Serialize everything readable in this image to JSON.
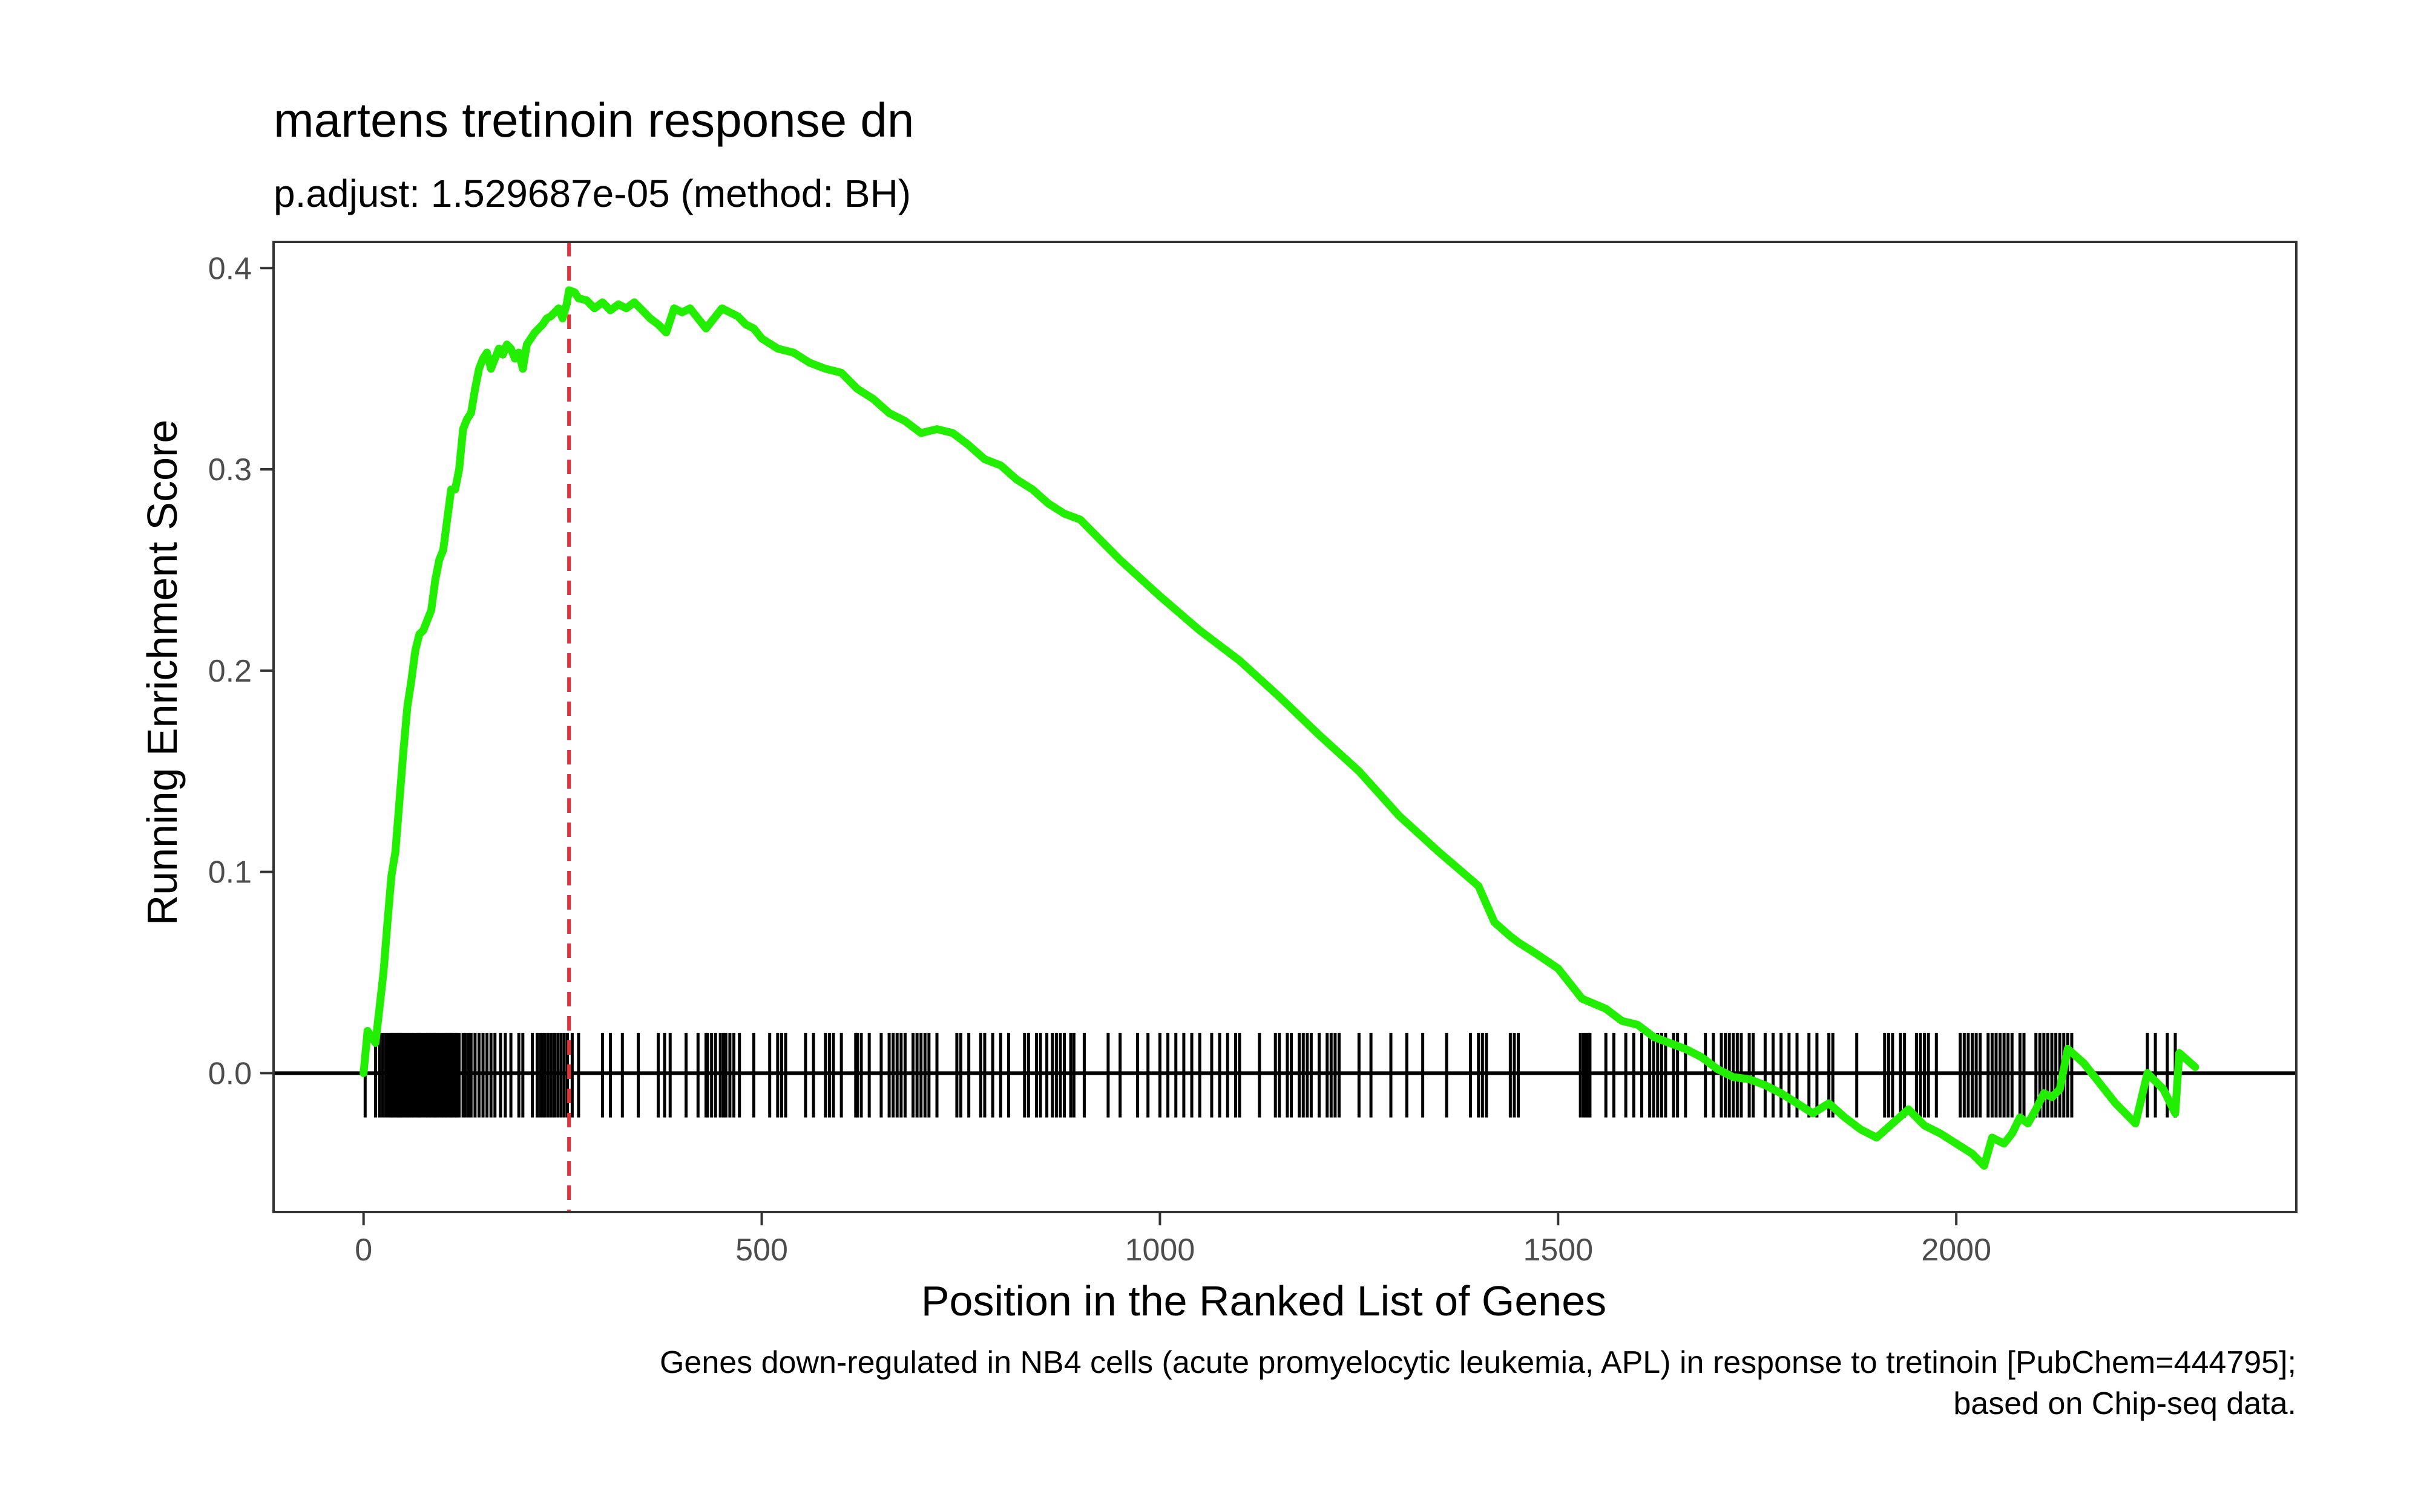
{
  "chart_data": {
    "type": "line",
    "title": "martens tretinoin response dn",
    "subtitle": "p.adjust: 1.529687e-05 (method: BH)",
    "xlabel": "Position in the Ranked List of Genes",
    "ylabel": "Running Enrichment Score",
    "caption": [
      "Genes down-regulated in NB4 cells (acute promyelocytic leukemia, APL) in response to tretinoin [PubChem=444795];",
      "based on Chip-seq data."
    ],
    "xlim": [
      -113,
      2427
    ],
    "ylim": [
      -0.069,
      0.413
    ],
    "x_ticks": [
      0,
      500,
      1000,
      1500,
      2000
    ],
    "x_tick_labels": [
      "0",
      "500",
      "1000",
      "1500",
      "2000"
    ],
    "y_ticks": [
      0.0,
      0.1,
      0.2,
      0.3,
      0.4
    ],
    "y_tick_labels": [
      "0.0",
      "0.1",
      "0.2",
      "0.3",
      "0.4"
    ],
    "grid": false,
    "colors": {
      "curve": "#22ee00",
      "peak_line": "#e8303a",
      "hits": "#000000",
      "zero_line": "#000000"
    },
    "peak_position": 258,
    "series": [
      {
        "x": [
          0,
          5,
          15,
          25,
          30,
          35,
          40,
          45,
          50,
          55,
          60,
          65,
          70,
          75,
          80,
          85,
          90,
          95,
          100,
          105,
          110,
          115,
          120,
          125,
          130,
          135,
          140,
          145,
          150,
          155,
          160,
          165,
          170,
          175,
          180,
          185,
          190,
          195,
          200,
          205,
          210,
          215,
          220,
          225,
          230,
          235,
          240,
          245,
          250,
          255,
          258,
          265,
          270,
          280,
          290,
          300,
          310,
          320,
          330,
          340,
          350,
          360,
          370,
          380,
          390,
          400,
          410,
          420,
          430,
          440,
          450,
          460,
          470,
          480,
          490,
          500,
          520,
          540,
          560,
          580,
          600,
          620,
          640,
          660,
          680,
          700,
          720,
          740,
          760,
          780,
          800,
          820,
          840,
          860,
          880,
          900,
          950,
          1000,
          1050,
          1100,
          1150,
          1200,
          1250,
          1300,
          1350,
          1400,
          1420,
          1440,
          1450,
          1470,
          1500,
          1530,
          1560,
          1580,
          1600,
          1620,
          1640,
          1660,
          1680,
          1700,
          1720,
          1740,
          1760,
          1780,
          1800,
          1820,
          1840,
          1860,
          1880,
          1900,
          1920,
          1940,
          1960,
          1980,
          2000,
          2020,
          2035,
          2045,
          2060,
          2070,
          2080,
          2090,
          2100,
          2110,
          2120,
          2130,
          2140,
          2160,
          2180,
          2200,
          2225,
          2240,
          2260,
          2275,
          2280,
          2300
        ],
        "y": [
          0.0,
          0.021,
          0.015,
          0.05,
          0.075,
          0.098,
          0.11,
          0.135,
          0.16,
          0.182,
          0.195,
          0.21,
          0.218,
          0.22,
          0.225,
          0.23,
          0.245,
          0.255,
          0.26,
          0.275,
          0.29,
          0.29,
          0.3,
          0.32,
          0.325,
          0.328,
          0.34,
          0.35,
          0.355,
          0.358,
          0.35,
          0.355,
          0.36,
          0.357,
          0.362,
          0.36,
          0.355,
          0.358,
          0.35,
          0.362,
          0.365,
          0.368,
          0.37,
          0.372,
          0.375,
          0.376,
          0.378,
          0.38,
          0.375,
          0.382,
          0.389,
          0.388,
          0.385,
          0.384,
          0.38,
          0.383,
          0.379,
          0.382,
          0.38,
          0.383,
          0.379,
          0.375,
          0.372,
          0.368,
          0.38,
          0.378,
          0.38,
          0.375,
          0.37,
          0.375,
          0.38,
          0.378,
          0.376,
          0.372,
          0.37,
          0.365,
          0.36,
          0.358,
          0.353,
          0.35,
          0.348,
          0.34,
          0.335,
          0.328,
          0.324,
          0.318,
          0.32,
          0.318,
          0.312,
          0.305,
          0.302,
          0.295,
          0.29,
          0.283,
          0.278,
          0.275,
          0.255,
          0.237,
          0.22,
          0.205,
          0.187,
          0.168,
          0.15,
          0.128,
          0.11,
          0.093,
          0.075,
          0.068,
          0.065,
          0.06,
          0.052,
          0.037,
          0.032,
          0.026,
          0.024,
          0.018,
          0.015,
          0.012,
          0.008,
          0.002,
          -0.002,
          -0.003,
          -0.006,
          -0.01,
          -0.015,
          -0.02,
          -0.015,
          -0.022,
          -0.028,
          -0.032,
          -0.025,
          -0.018,
          -0.026,
          -0.03,
          -0.035,
          -0.04,
          -0.046,
          -0.032,
          -0.035,
          -0.03,
          -0.022,
          -0.025,
          -0.018,
          -0.01,
          -0.012,
          -0.008,
          0.012,
          0.005,
          -0.005,
          -0.015,
          -0.025,
          0.0,
          -0.008,
          -0.02,
          0.01,
          0.003
        ]
      }
    ],
    "hits": [
      2,
      15,
      20,
      24,
      28,
      31,
      34,
      36,
      38,
      41,
      43,
      45,
      47,
      49,
      52,
      55,
      57,
      60,
      62,
      65,
      68,
      70,
      72,
      75,
      78,
      80,
      83,
      85,
      88,
      90,
      92,
      95,
      98,
      100,
      103,
      105,
      108,
      110,
      112,
      115,
      117,
      120,
      125,
      128,
      132,
      135,
      140,
      145,
      150,
      155,
      160,
      165,
      172,
      178,
      185,
      195,
      200,
      212,
      218,
      222,
      225,
      228,
      232,
      236,
      240,
      244,
      248,
      252,
      256,
      262,
      270,
      300,
      310,
      325,
      345,
      370,
      378,
      385,
      405,
      420,
      430,
      432,
      437,
      442,
      448,
      452,
      455,
      460,
      465,
      472,
      490,
      510,
      520,
      525,
      530,
      555,
      565,
      580,
      585,
      590,
      600,
      618,
      620,
      625,
      635,
      650,
      660,
      665,
      670,
      675,
      680,
      690,
      695,
      700,
      705,
      710,
      720,
      745,
      750,
      760,
      775,
      780,
      790,
      800,
      810,
      830,
      835,
      845,
      850,
      858,
      865,
      870,
      875,
      880,
      888,
      892,
      905,
      935,
      950,
      972,
      985,
      1000,
      1010,
      1020,
      1030,
      1040,
      1050,
      1065,
      1075,
      1085,
      1095,
      1100,
      1125,
      1145,
      1150,
      1160,
      1165,
      1175,
      1180,
      1185,
      1190,
      1200,
      1210,
      1215,
      1220,
      1225,
      1250,
      1265,
      1290,
      1310,
      1330,
      1360,
      1390,
      1400,
      1405,
      1410,
      1440,
      1445,
      1450,
      1528,
      1532,
      1535,
      1538,
      1540,
      1560,
      1570,
      1585,
      1595,
      1605,
      1615,
      1620,
      1625,
      1630,
      1635,
      1645,
      1650,
      1660,
      1685,
      1695,
      1705,
      1710,
      1715,
      1720,
      1725,
      1730,
      1740,
      1745,
      1760,
      1770,
      1780,
      1790,
      1800,
      1815,
      1825,
      1840,
      1845,
      1875,
      1910,
      1915,
      1920,
      1930,
      1935,
      1950,
      1955,
      1960,
      1965,
      1975,
      2005,
      2010,
      2015,
      2020,
      2025,
      2030,
      2040,
      2045,
      2050,
      2055,
      2060,
      2065,
      2070,
      2080,
      2085,
      2100,
      2105,
      2110,
      2115,
      2120,
      2125,
      2130,
      2135,
      2140,
      2145,
      2240,
      2250,
      2265,
      2275
    ]
  }
}
